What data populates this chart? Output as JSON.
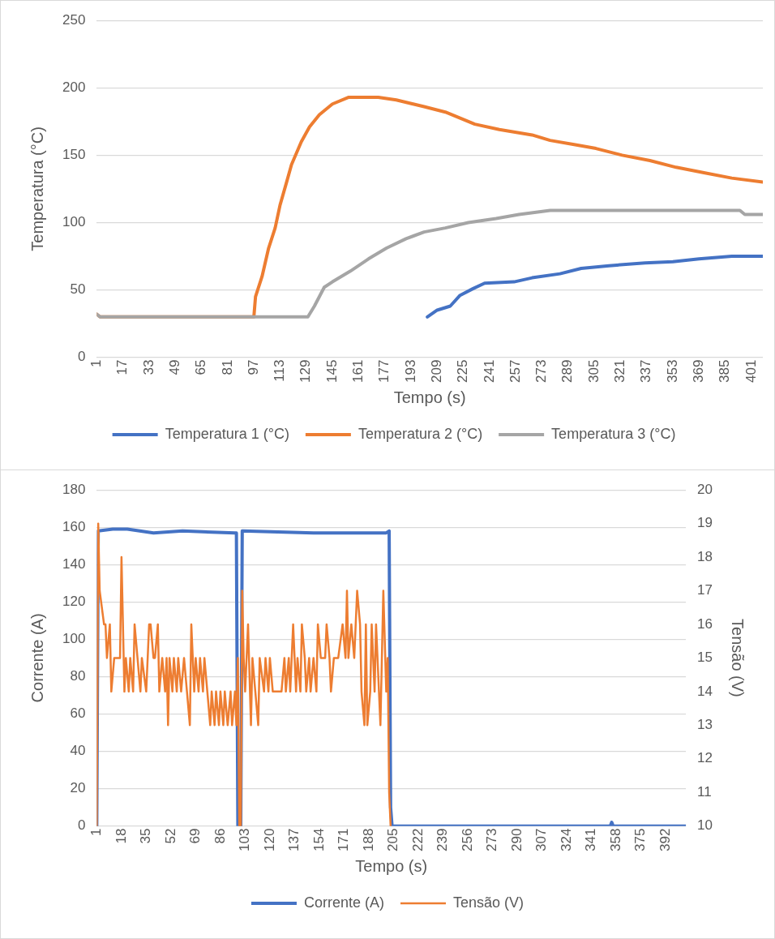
{
  "chart_data": [
    {
      "type": "line",
      "xlabel": "Tempo (s)",
      "ylabel": "Temperatura (°C)",
      "xlim": [
        1,
        408
      ],
      "xticks": [
        1,
        17,
        33,
        49,
        65,
        81,
        97,
        113,
        129,
        145,
        161,
        177,
        193,
        209,
        225,
        241,
        257,
        273,
        289,
        305,
        321,
        337,
        353,
        369,
        385,
        401
      ],
      "ylim": [
        0,
        250
      ],
      "yticks": [
        0,
        50,
        100,
        150,
        200,
        250
      ],
      "grid": "y",
      "legend": "bottom",
      "marker": "none",
      "line_style": "solid",
      "series": [
        {
          "name": "Temperatura 1 (°C)",
          "color": "#4472c4",
          "x": [
            203,
            209,
            217,
            223,
            231,
            238,
            256,
            267,
            284,
            297,
            314,
            336,
            353,
            369,
            389,
            408
          ],
          "values": [
            30,
            35,
            38,
            46,
            51,
            55,
            56,
            59,
            62,
            66,
            68,
            70,
            71,
            73,
            75,
            75
          ]
        },
        {
          "name": "Temperatura 2 (°C)",
          "color": "#ed7d31",
          "x": [
            1,
            3,
            97,
            98,
            102,
            106,
            110,
            113,
            117,
            120,
            126,
            131,
            137,
            145,
            155,
            173,
            184,
            201,
            214,
            232,
            247,
            267,
            278,
            292,
            306,
            322,
            339,
            355,
            372,
            389,
            408
          ],
          "values": [
            32,
            30,
            30,
            45,
            60,
            81,
            96,
            113,
            130,
            143,
            160,
            171,
            180,
            188,
            193,
            193,
            191,
            186,
            182,
            173,
            169,
            165,
            161,
            158,
            155,
            150,
            146,
            141,
            137,
            133,
            130
          ]
        },
        {
          "name": "Temperatura 3 (°C)",
          "color": "#a5a5a5",
          "x": [
            1,
            3,
            130,
            134,
            140,
            145,
            156,
            167,
            178,
            190,
            201,
            214,
            228,
            245,
            259,
            278,
            311,
            394,
            397,
            408
          ],
          "values": [
            32,
            30,
            30,
            38,
            52,
            56,
            64,
            73,
            81,
            88,
            93,
            96,
            100,
            103,
            106,
            109,
            109,
            109,
            106,
            106
          ]
        }
      ]
    },
    {
      "type": "line",
      "xlabel": "Tempo (s)",
      "ylabel": "Corrente (A)",
      "y2label": "Tensão (V)",
      "xlim": [
        1,
        406
      ],
      "xticks": [
        1,
        18,
        35,
        52,
        69,
        86,
        103,
        120,
        137,
        154,
        171,
        188,
        205,
        222,
        239,
        256,
        273,
        290,
        307,
        324,
        341,
        358,
        375,
        392
      ],
      "ylim": [
        0,
        180
      ],
      "yticks": [
        0,
        20,
        40,
        60,
        80,
        100,
        120,
        140,
        160,
        180
      ],
      "y2lim": [
        10,
        20
      ],
      "y2ticks": [
        10,
        11,
        12,
        13,
        14,
        15,
        16,
        17,
        18,
        19,
        20
      ],
      "grid": "y",
      "legend": "bottom",
      "marker": "none",
      "line_style": "solid",
      "series": [
        {
          "name": "Corrente (A)",
          "color": "#4472c4",
          "x": [
            1,
            2,
            12,
            22,
            40,
            60,
            96,
            97,
            98,
            100,
            101,
            150,
            200,
            202,
            203,
            204,
            354,
            355,
            356,
            406
          ],
          "values": [
            0,
            158,
            159,
            159,
            157,
            158,
            157,
            157,
            0,
            0,
            158,
            157,
            157,
            158,
            10,
            0,
            0,
            2,
            0,
            0
          ]
        },
        {
          "name": "Tensão (V)",
          "color": "#ed7d31",
          "axis": "y2",
          "x": [
            1,
            2,
            3,
            6,
            7,
            8,
            10,
            11,
            13,
            17,
            18,
            20,
            21,
            23,
            24,
            26,
            27,
            29,
            31,
            32,
            35,
            37,
            38,
            40,
            41,
            43,
            44,
            46,
            48,
            49,
            50,
            51,
            53,
            54,
            56,
            57,
            59,
            61,
            63,
            65,
            66,
            68,
            69,
            71,
            72,
            74,
            75,
            77,
            79,
            80,
            82,
            83,
            85,
            86,
            88,
            89,
            91,
            93,
            94,
            96,
            97,
            98,
            99,
            100,
            101,
            102,
            103,
            105,
            107,
            108,
            110,
            112,
            113,
            116,
            117,
            119,
            120,
            122,
            125,
            128,
            130,
            131,
            133,
            134,
            136,
            138,
            139,
            141,
            142,
            144,
            145,
            147,
            148,
            150,
            152,
            153,
            155,
            158,
            159,
            161,
            162,
            164,
            167,
            170,
            172,
            173,
            174,
            176,
            178,
            179,
            180,
            182,
            183,
            185,
            186,
            187,
            189,
            190,
            192,
            193,
            195,
            196,
            198,
            200,
            201,
            202,
            203
          ],
          "values": [
            10,
            19,
            17,
            16,
            16,
            15,
            16,
            14,
            15,
            15,
            18,
            14,
            15,
            14,
            15,
            14,
            16,
            15,
            14,
            15,
            14,
            16,
            16,
            15,
            15,
            16,
            14,
            15,
            14,
            15,
            13,
            15,
            14,
            15,
            14,
            15,
            14,
            15,
            14,
            13,
            16,
            14,
            15,
            14,
            15,
            14,
            15,
            14,
            13,
            14,
            13,
            14,
            13,
            14,
            13,
            14,
            13,
            14,
            13,
            14,
            13,
            15,
            10,
            10,
            17,
            15,
            14,
            16,
            13,
            15,
            14,
            13,
            15,
            14,
            15,
            14,
            15,
            14,
            14,
            14,
            15,
            14,
            15,
            14,
            16,
            14,
            15,
            14,
            16,
            15,
            14,
            15,
            14,
            15,
            14,
            16,
            15,
            15,
            16,
            15,
            14,
            15,
            15,
            16,
            15,
            17,
            15,
            16,
            15,
            16,
            17,
            16,
            14,
            13,
            16,
            13,
            14,
            16,
            14,
            16,
            14,
            13,
            17,
            14,
            15,
            11,
            10
          ]
        }
      ]
    }
  ]
}
